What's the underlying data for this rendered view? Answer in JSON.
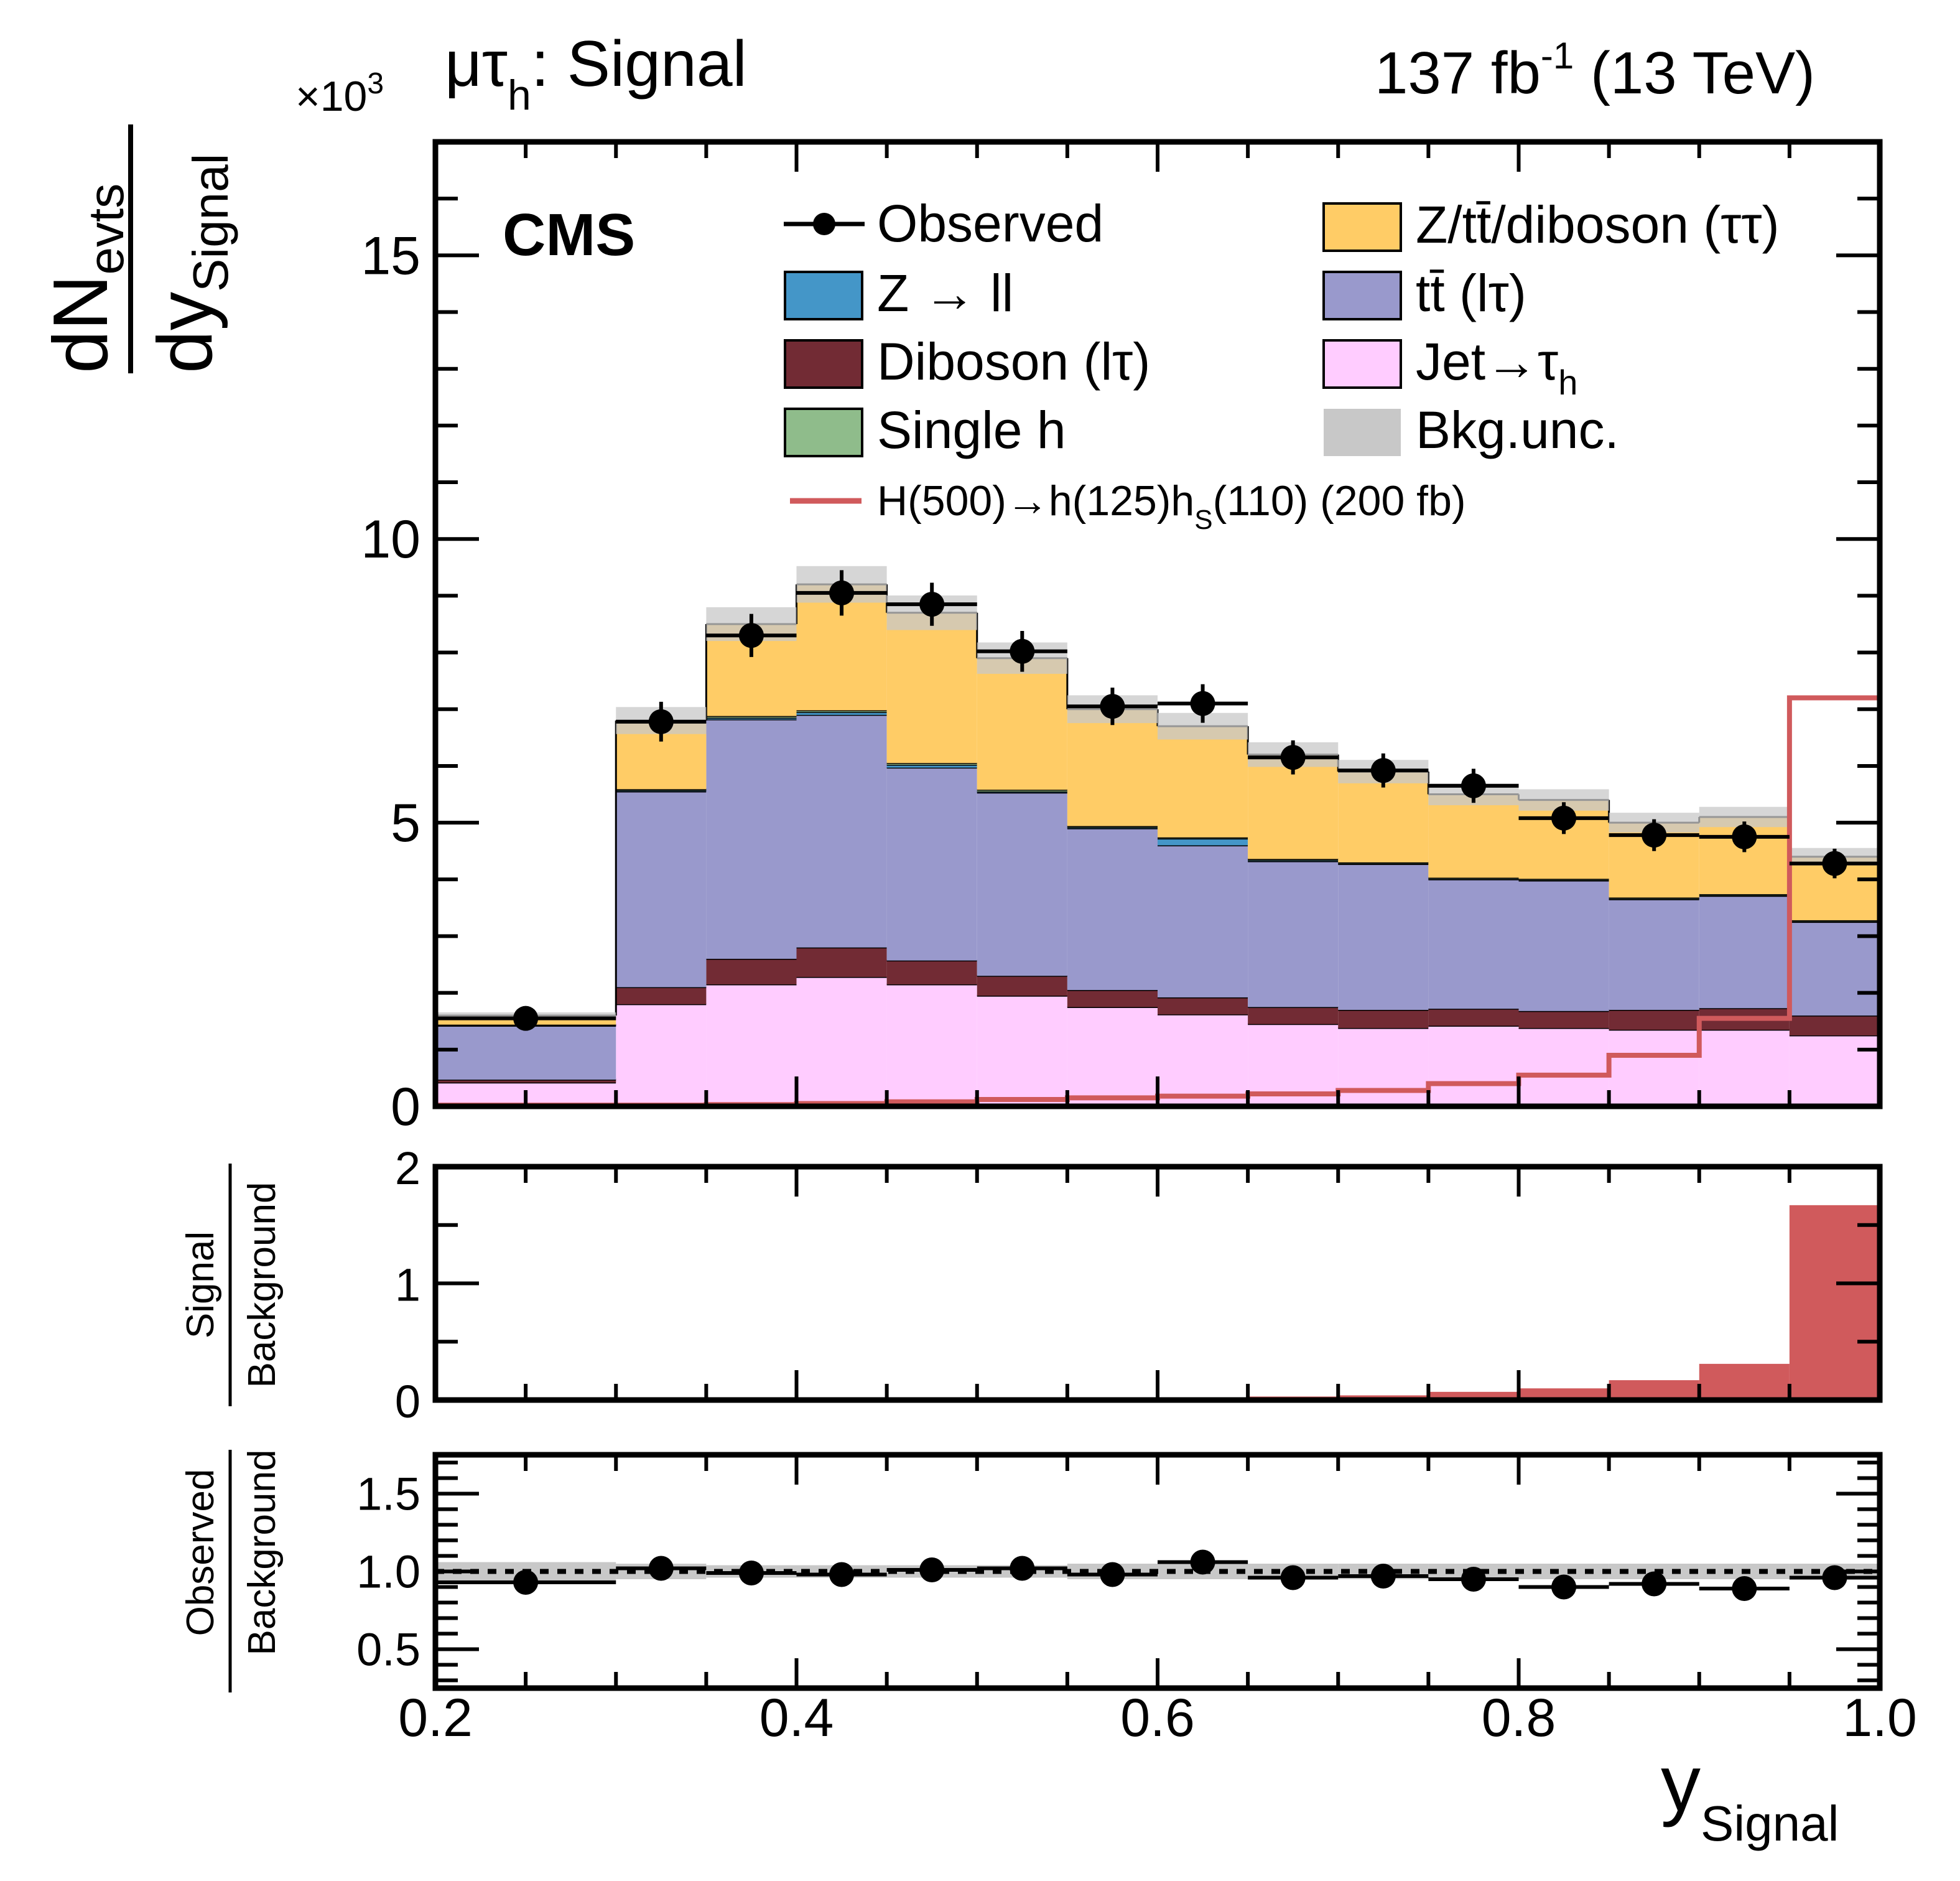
{
  "header": {
    "channel": "μτ",
    "channel_sub": "h",
    "channel_suffix": ": Signal",
    "multiplier_base": "×10",
    "multiplier_exp": "3",
    "lumi_base": "137 fb",
    "lumi_exp": "-1",
    "lumi_suffix": " (13 TeV)",
    "experiment": "CMS"
  },
  "axes": {
    "ylabel_num_main": "dN",
    "ylabel_num_sub": "evts",
    "ylabel_den_main": "dy",
    "ylabel_den_sub": "Signal",
    "xlabel_main": "y",
    "xlabel_sub": "Signal",
    "ratio1_num": "Signal",
    "ratio1_den": "Background",
    "ratio2_num": "Observed",
    "ratio2_den": "Background"
  },
  "legend": {
    "observed": "Observed",
    "zll": "Z → ll",
    "diboson_lt": "Diboson (lτ)",
    "single_h": "Single h",
    "ztt": "Z/tt̄/diboson (ττ)",
    "ttbar_lt": "tt̄ (lτ)",
    "jet_tau_main": "Jet→τ",
    "jet_tau_sub": "h",
    "bkg_unc": "Bkg.unc.",
    "signal_main": "H(500)→h(125)h",
    "signal_sub": "S",
    "signal_suffix": "(110) (200 fb)"
  },
  "colors": {
    "jet_tau": "#ffccff",
    "diboson_lt": "#722b34",
    "ttbar_lt": "#9999cc",
    "zll": "#4496c8",
    "single_h": "#8fbc8b",
    "ztt": "#ffcc66",
    "bkg_unc": "#c8c8c8",
    "signal": "#d05a5c"
  },
  "chart_data": [
    {
      "type": "bar",
      "stacked": true,
      "panel": "main",
      "bin_edges": [
        0.2,
        0.3,
        0.35,
        0.4,
        0.45,
        0.5,
        0.55,
        0.6,
        0.65,
        0.7,
        0.75,
        0.8,
        0.85,
        0.9,
        0.95,
        1.0
      ],
      "xlim": [
        0.2,
        1.0
      ],
      "ylim": [
        0,
        17
      ],
      "y_multiplier": 1000,
      "yticks": [
        0,
        5,
        10,
        15
      ],
      "series": [
        {
          "name": "Jet→τh",
          "key": "jet_tau",
          "values": [
            0.42,
            1.8,
            2.15,
            2.28,
            2.15,
            1.95,
            1.75,
            1.62,
            1.45,
            1.38,
            1.42,
            1.38,
            1.35,
            1.35,
            1.25
          ]
        },
        {
          "name": "Diboson (lτ)",
          "key": "diboson_lt",
          "values": [
            0.05,
            0.3,
            0.45,
            0.52,
            0.42,
            0.35,
            0.3,
            0.3,
            0.3,
            0.32,
            0.3,
            0.3,
            0.35,
            0.38,
            0.35
          ]
        },
        {
          "name": "tt̄ (lτ)",
          "key": "ttbar_lt",
          "values": [
            0.95,
            3.45,
            4.22,
            4.1,
            3.4,
            3.23,
            2.85,
            2.68,
            2.57,
            2.57,
            2.28,
            2.3,
            1.95,
            1.98,
            1.65
          ]
        },
        {
          "name": "Z → ll",
          "key": "zll",
          "values": [
            0.01,
            0.02,
            0.03,
            0.05,
            0.05,
            0.02,
            0.02,
            0.12,
            0.02,
            0.01,
            0.01,
            0.01,
            0.01,
            0.01,
            0.01
          ]
        },
        {
          "name": "Single h",
          "key": "single_h",
          "values": [
            0.01,
            0.02,
            0.03,
            0.03,
            0.03,
            0.03,
            0.02,
            0.02,
            0.02,
            0.02,
            0.02,
            0.02,
            0.02,
            0.02,
            0.02
          ]
        },
        {
          "name": "Z/tt̄/diboson (ττ)",
          "key": "ztt",
          "values": [
            0.16,
            1.21,
            1.62,
            2.22,
            2.65,
            2.32,
            2.06,
            1.96,
            1.84,
            1.6,
            1.47,
            1.39,
            1.32,
            1.36,
            1.12
          ]
        }
      ],
      "bkg_unc_fraction": 0.035,
      "signal": {
        "name": "H(500)→h(125)hS(110) (200 fb)",
        "values": [
          0.02,
          0.02,
          0.03,
          0.05,
          0.08,
          0.12,
          0.15,
          0.18,
          0.22,
          0.28,
          0.4,
          0.55,
          0.9,
          1.55,
          7.2
        ]
      },
      "observed": {
        "name": "Observed",
        "x": [
          0.25,
          0.325,
          0.375,
          0.425,
          0.475,
          0.525,
          0.575,
          0.625,
          0.675,
          0.725,
          0.775,
          0.825,
          0.875,
          0.925,
          0.975
        ],
        "y": [
          1.55,
          6.78,
          8.3,
          9.05,
          8.85,
          8.02,
          7.05,
          7.1,
          6.15,
          5.92,
          5.65,
          5.08,
          4.78,
          4.75,
          4.28
        ],
        "yerr": [
          0.1,
          0.35,
          0.38,
          0.4,
          0.38,
          0.36,
          0.33,
          0.34,
          0.3,
          0.3,
          0.3,
          0.28,
          0.28,
          0.27,
          0.26
        ]
      }
    },
    {
      "type": "bar",
      "panel": "signal_over_background",
      "bin_edges": [
        0.2,
        0.3,
        0.35,
        0.4,
        0.45,
        0.5,
        0.55,
        0.6,
        0.65,
        0.7,
        0.75,
        0.8,
        0.85,
        0.9,
        0.95,
        1.0
      ],
      "ylim": [
        0,
        2
      ],
      "yticks": [
        0,
        1,
        2
      ],
      "values": [
        0.01,
        0.0,
        0.0,
        0.0,
        0.01,
        0.01,
        0.02,
        0.02,
        0.03,
        0.04,
        0.07,
        0.1,
        0.17,
        0.31,
        1.67
      ]
    },
    {
      "type": "scatter",
      "panel": "observed_over_background",
      "ylim": [
        0.25,
        1.75
      ],
      "yticks": [
        0.5,
        1.0,
        1.5
      ],
      "xticks": [
        0.2,
        0.4,
        0.6,
        0.8,
        1.0
      ],
      "reference_line": 1.0,
      "x": [
        0.25,
        0.325,
        0.375,
        0.425,
        0.475,
        0.525,
        0.575,
        0.625,
        0.675,
        0.725,
        0.775,
        0.825,
        0.875,
        0.925,
        0.975
      ],
      "y": [
        0.93,
        1.02,
        0.99,
        0.98,
        1.01,
        1.02,
        0.98,
        1.06,
        0.96,
        0.97,
        0.95,
        0.9,
        0.92,
        0.89,
        0.96
      ],
      "unc_band": [
        0.06,
        0.05,
        0.04,
        0.04,
        0.04,
        0.04,
        0.05,
        0.05,
        0.05,
        0.05,
        0.05,
        0.05,
        0.05,
        0.05,
        0.05
      ]
    }
  ]
}
